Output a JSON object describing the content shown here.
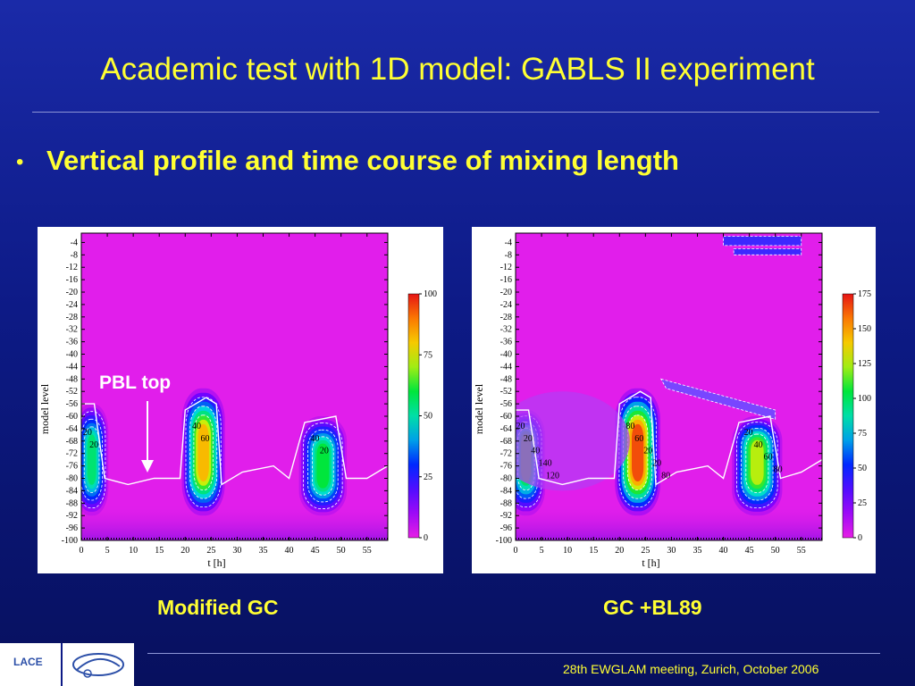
{
  "slide": {
    "title": "Academic test with 1D model: GABLS II experiment",
    "bullet": "Vertical profile and time course of mixing length",
    "pbl_label": "PBL top",
    "footer": "28th EWGLAM meeting, Zurich, October 2006",
    "logo_text": "LACE",
    "colors": {
      "text": "#ffff33",
      "background": "#0d1a86"
    }
  },
  "chart_data": [
    {
      "type": "heatmap",
      "caption": "Modified GC",
      "xlabel": "t [h]",
      "ylabel": "model level",
      "x_ticks": [
        0,
        5,
        10,
        15,
        20,
        25,
        30,
        35,
        40,
        45,
        50,
        55
      ],
      "y_ticks": [
        -4,
        -8,
        -12,
        -16,
        -20,
        -24,
        -28,
        -32,
        -36,
        -40,
        -44,
        -48,
        -52,
        -56,
        -60,
        -64,
        -68,
        -72,
        -76,
        -80,
        -84,
        -88,
        -92,
        -96,
        -100
      ],
      "xlim": [
        0,
        59
      ],
      "ylim": [
        -100,
        -1
      ],
      "colorbar": {
        "min": 0,
        "max": 100,
        "ticks": [
          0,
          25,
          50,
          75,
          100
        ]
      },
      "contour_labels": [
        "20",
        "20",
        "40",
        "60",
        "40",
        "20"
      ],
      "blobs": [
        {
          "t_center": 2,
          "t_width": 2.8,
          "level_center": -74,
          "level_spread": 14,
          "top_level": -56,
          "peak": 55
        },
        {
          "t_center": 23.5,
          "t_width": 3.6,
          "level_center": -72,
          "level_spread": 14,
          "top_level": -51,
          "peak": 82
        },
        {
          "t_center": 46.5,
          "t_width": 4,
          "level_center": -76,
          "level_spread": 13,
          "top_level": -60,
          "peak": 60
        }
      ],
      "pbl_top": [
        [
          0,
          -56
        ],
        [
          2.5,
          -56
        ],
        [
          4.5,
          -80
        ],
        [
          9,
          -82
        ],
        [
          14,
          -80
        ],
        [
          19,
          -80
        ],
        [
          20,
          -58
        ],
        [
          24,
          -54
        ],
        [
          26,
          -56
        ],
        [
          27,
          -82
        ],
        [
          31,
          -78
        ],
        [
          37,
          -76
        ],
        [
          40,
          -80
        ],
        [
          43,
          -62
        ],
        [
          49,
          -60
        ],
        [
          51,
          -80
        ],
        [
          55,
          -80
        ],
        [
          59,
          -76
        ]
      ]
    },
    {
      "type": "heatmap",
      "caption": "GC +BL89",
      "xlabel": "t [h]",
      "ylabel": "model level",
      "x_ticks": [
        0,
        5,
        10,
        15,
        20,
        25,
        30,
        35,
        40,
        45,
        50,
        55
      ],
      "y_ticks": [
        -4,
        -8,
        -12,
        -16,
        -20,
        -24,
        -28,
        -32,
        -36,
        -40,
        -44,
        -48,
        -52,
        -56,
        -60,
        -64,
        -68,
        -72,
        -76,
        -80,
        -84,
        -88,
        -92,
        -96,
        -100
      ],
      "xlim": [
        0,
        59
      ],
      "ylim": [
        -100,
        -1
      ],
      "colorbar": {
        "min": 0,
        "max": 175,
        "ticks": [
          0,
          25,
          50,
          75,
          100,
          125,
          150,
          175
        ]
      },
      "contour_labels": [
        "20",
        "20",
        "40",
        "140",
        "120",
        "80",
        "60",
        "20",
        "20",
        "80",
        "20",
        "40",
        "60",
        "80"
      ],
      "blobs": [
        {
          "t_center": 2,
          "t_width": 3.2,
          "level_center": -72,
          "level_spread": 14,
          "top_level": -58,
          "peak": 110
        },
        {
          "t_center": 23.5,
          "t_width": 3.8,
          "level_center": -72,
          "level_spread": 15,
          "top_level": -51,
          "peak": 165
        },
        {
          "t_center": 46.5,
          "t_width": 4.2,
          "level_center": -74,
          "level_spread": 14,
          "top_level": -60,
          "peak": 125
        }
      ],
      "pbl_top": [
        [
          0,
          -58
        ],
        [
          2.5,
          -58
        ],
        [
          4.5,
          -80
        ],
        [
          9,
          -82
        ],
        [
          14,
          -80
        ],
        [
          19,
          -80
        ],
        [
          20,
          -56
        ],
        [
          24,
          -52
        ],
        [
          26,
          -54
        ],
        [
          27,
          -82
        ],
        [
          31,
          -78
        ],
        [
          37,
          -76
        ],
        [
          40,
          -80
        ],
        [
          43,
          -62
        ],
        [
          49,
          -60
        ],
        [
          51,
          -80
        ],
        [
          55,
          -78
        ],
        [
          59,
          -74
        ]
      ]
    }
  ]
}
